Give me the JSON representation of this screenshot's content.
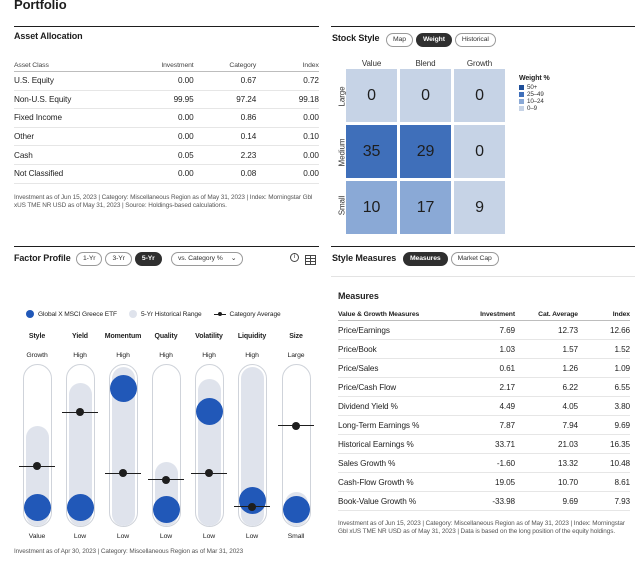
{
  "page_title": "Portfolio",
  "asset_allocation": {
    "title": "Asset Allocation",
    "columns": [
      "Asset Class",
      "Investment",
      "Category",
      "Index"
    ],
    "rows": [
      {
        "name": "U.S. Equity",
        "investment": "0.00",
        "category": "0.67",
        "index": "0.72"
      },
      {
        "name": "Non-U.S. Equity",
        "investment": "99.95",
        "category": "97.24",
        "index": "99.18"
      },
      {
        "name": "Fixed Income",
        "investment": "0.00",
        "category": "0.86",
        "index": "0.00"
      },
      {
        "name": "Other",
        "investment": "0.00",
        "category": "0.14",
        "index": "0.10"
      },
      {
        "name": "Cash",
        "investment": "0.05",
        "category": "2.23",
        "index": "0.00"
      },
      {
        "name": "Not Classified",
        "investment": "0.00",
        "category": "0.08",
        "index": "0.00"
      }
    ],
    "footnote": "Investment as of Jun 15, 2023 | Category: Miscellaneous Region as of May 31, 2023 | Index: Morningstar Gbl xUS TME NR USD as of May 31, 2023 | Source: Holdings-based calculations."
  },
  "stock_style": {
    "title": "Stock Style",
    "tabs": [
      "Map",
      "Weight",
      "Historical"
    ],
    "active_tab": "Weight",
    "column_headers": [
      "Value",
      "Blend",
      "Growth"
    ],
    "row_headers": [
      "Large",
      "Medium",
      "Small"
    ],
    "cells": [
      {
        "value": "0",
        "color": "#c6d3e6"
      },
      {
        "value": "0",
        "color": "#c6d3e6"
      },
      {
        "value": "0",
        "color": "#c6d3e6"
      },
      {
        "value": "35",
        "color": "#3f6fba"
      },
      {
        "value": "29",
        "color": "#3f6fba"
      },
      {
        "value": "0",
        "color": "#c6d3e6"
      },
      {
        "value": "10",
        "color": "#8aa9d6"
      },
      {
        "value": "17",
        "color": "#8aa9d6"
      },
      {
        "value": "9",
        "color": "#c6d3e6"
      }
    ],
    "legend": {
      "title": "Weight %",
      "items": [
        {
          "label": "50+",
          "color": "#1f4f99"
        },
        {
          "label": "25–49",
          "color": "#3f6fba"
        },
        {
          "label": "10–24",
          "color": "#8aa9d6"
        },
        {
          "label": "0–9",
          "color": "#c6d3e6"
        }
      ]
    }
  },
  "factor_profile": {
    "title": "Factor Profile",
    "periods": [
      "1-Yr",
      "3-Yr",
      "5-Yr"
    ],
    "active_period": "5-Yr",
    "compare_select": "vs. Category %",
    "legend": [
      "Global X MSCI Greece ETF",
      "5-Yr Historical Range",
      "Category Average"
    ],
    "factors": [
      {
        "name": "Style",
        "top": "Growth",
        "bottom": "Value",
        "fund": 0.05,
        "avg": 0.35,
        "range": [
          0,
          0.55
        ]
      },
      {
        "name": "Yield",
        "top": "High",
        "bottom": "Low",
        "fund": 0.05,
        "avg": 0.75,
        "range": [
          0,
          0.87
        ]
      },
      {
        "name": "Momentum",
        "top": "High",
        "bottom": "Low",
        "fund": 0.93,
        "avg": 0.3,
        "range": [
          0,
          1
        ]
      },
      {
        "name": "Quality",
        "top": "High",
        "bottom": "Low",
        "fund": 0.03,
        "avg": 0.25,
        "range": [
          0,
          0.28
        ]
      },
      {
        "name": "Volatility",
        "top": "High",
        "bottom": "Low",
        "fund": 0.76,
        "avg": 0.3,
        "range": [
          0,
          0.9
        ]
      },
      {
        "name": "Liquidity",
        "top": "High",
        "bottom": "Low",
        "fund": 0.1,
        "avg": 0.05,
        "range": [
          0,
          1
        ]
      },
      {
        "name": "Size",
        "top": "Large",
        "bottom": "Small",
        "fund": 0.03,
        "avg": 0.65,
        "range": [
          0,
          0.06
        ]
      }
    ],
    "footnote": "Investment as of Apr 30, 2023 | Category: Miscellaneous Region as of Mar 31, 2023"
  },
  "style_measures": {
    "title": "Style Measures",
    "tabs": [
      "Measures",
      "Market Cap"
    ],
    "active_tab": "Measures",
    "subtitle": "Measures",
    "columns": [
      "Value & Growth Measures",
      "Investment",
      "Cat. Average",
      "Index"
    ],
    "rows": [
      {
        "name": "Price/Earnings",
        "investment": "7.69",
        "category": "12.73",
        "index": "12.66"
      },
      {
        "name": "Price/Book",
        "investment": "1.03",
        "category": "1.57",
        "index": "1.52"
      },
      {
        "name": "Price/Sales",
        "investment": "0.61",
        "category": "1.26",
        "index": "1.09"
      },
      {
        "name": "Price/Cash Flow",
        "investment": "2.17",
        "category": "6.22",
        "index": "6.55"
      },
      {
        "name": "Dividend Yield %",
        "investment": "4.49",
        "category": "4.05",
        "index": "3.80"
      },
      {
        "name": "Long-Term Earnings %",
        "investment": "7.87",
        "category": "7.94",
        "index": "9.69"
      },
      {
        "name": "Historical Earnings %",
        "investment": "33.71",
        "category": "21.03",
        "index": "16.35"
      },
      {
        "name": "Sales Growth %",
        "investment": "-1.60",
        "category": "13.32",
        "index": "10.48"
      },
      {
        "name": "Cash-Flow Growth %",
        "investment": "19.05",
        "category": "10.70",
        "index": "8.61"
      },
      {
        "name": "Book-Value Growth %",
        "investment": "-33.98",
        "category": "9.69",
        "index": "7.93"
      }
    ],
    "footnote": "Investment as of Jun 15, 2023 | Category: Miscellaneous Region as of May 31, 2023 | Index: Morningstar Gbl xUS TME NR USD as of May 31, 2023 | Data is based on the long position of the equity holdings."
  }
}
